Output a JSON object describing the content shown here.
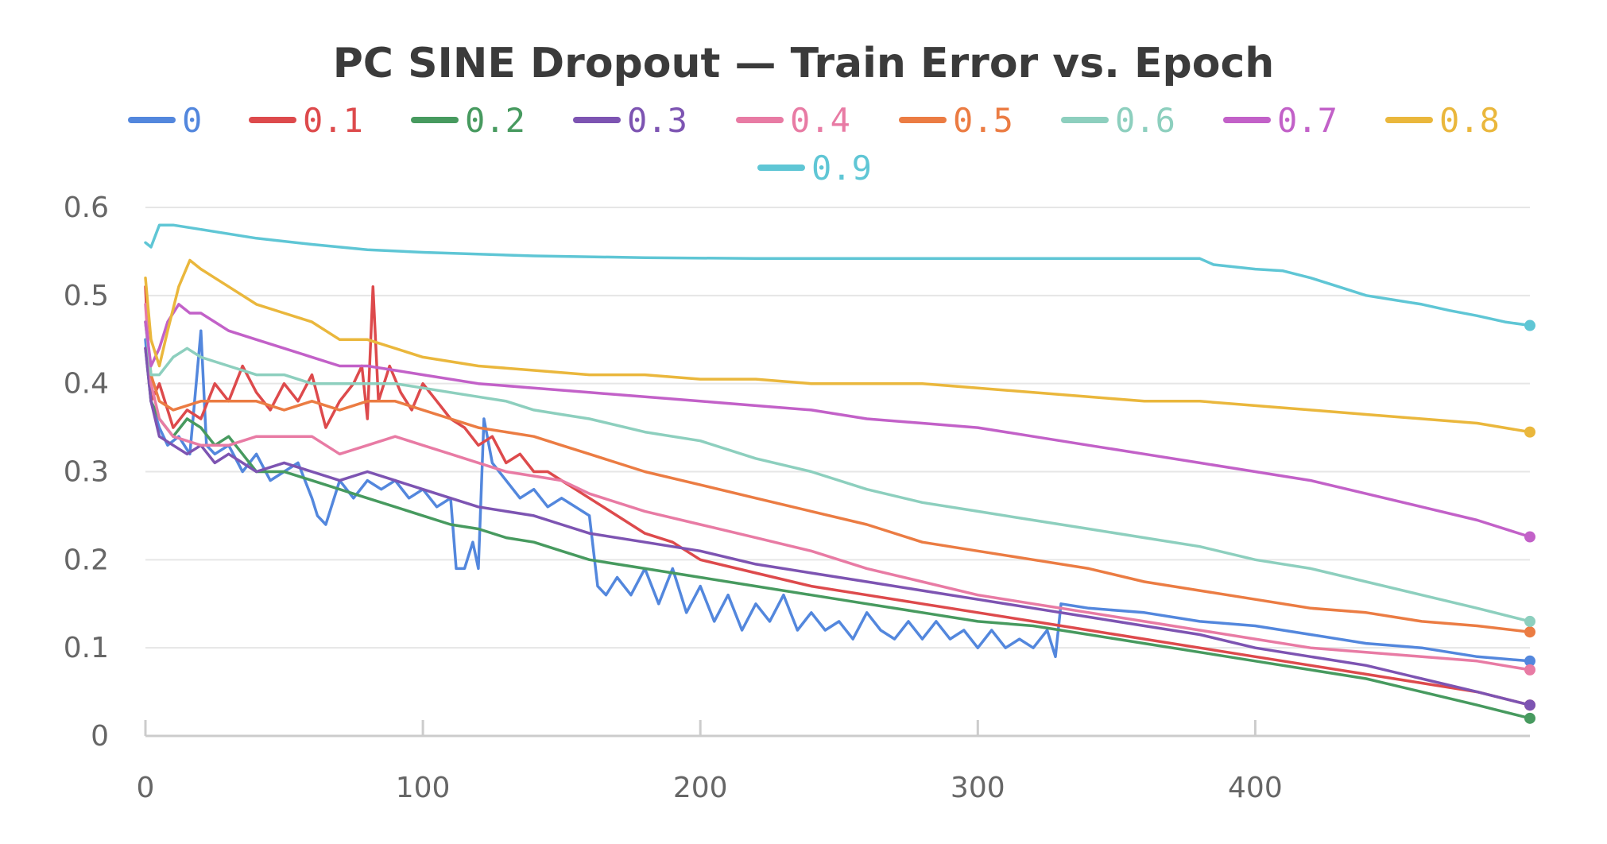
{
  "chart_data": {
    "type": "line",
    "title": "PC SINE Dropout — Train Error vs. Epoch",
    "xlabel": "",
    "ylabel": "",
    "xlim": [
      0,
      499
    ],
    "ylim": [
      0,
      0.6
    ],
    "x_ticks": [
      0,
      100,
      200,
      300,
      400
    ],
    "y_ticks": [
      0,
      0.1,
      0.2,
      0.3,
      0.4,
      0.5,
      0.6
    ],
    "grid": true,
    "legend_position": "top-center",
    "series": [
      {
        "name": "0",
        "color": "#5387dd",
        "x": [
          0,
          2,
          5,
          8,
          12,
          16,
          20,
          22,
          25,
          30,
          35,
          40,
          45,
          50,
          55,
          60,
          62,
          65,
          68,
          70,
          75,
          80,
          85,
          90,
          95,
          100,
          105,
          110,
          112,
          115,
          118,
          120,
          122,
          125,
          130,
          135,
          140,
          145,
          150,
          155,
          160,
          163,
          166,
          170,
          175,
          180,
          185,
          190,
          195,
          200,
          205,
          210,
          215,
          220,
          225,
          230,
          235,
          240,
          245,
          250,
          255,
          260,
          265,
          270,
          275,
          280,
          285,
          290,
          295,
          300,
          305,
          310,
          315,
          320,
          325,
          328,
          330,
          340,
          360,
          380,
          400,
          420,
          440,
          460,
          480,
          499
        ],
        "y": [
          0.45,
          0.38,
          0.35,
          0.33,
          0.34,
          0.32,
          0.46,
          0.33,
          0.32,
          0.33,
          0.3,
          0.32,
          0.29,
          0.3,
          0.31,
          0.27,
          0.25,
          0.24,
          0.27,
          0.29,
          0.27,
          0.29,
          0.28,
          0.29,
          0.27,
          0.28,
          0.26,
          0.27,
          0.19,
          0.19,
          0.22,
          0.19,
          0.36,
          0.31,
          0.29,
          0.27,
          0.28,
          0.26,
          0.27,
          0.26,
          0.25,
          0.17,
          0.16,
          0.18,
          0.16,
          0.19,
          0.15,
          0.19,
          0.14,
          0.17,
          0.13,
          0.16,
          0.12,
          0.15,
          0.13,
          0.16,
          0.12,
          0.14,
          0.12,
          0.13,
          0.11,
          0.14,
          0.12,
          0.11,
          0.13,
          0.11,
          0.13,
          0.11,
          0.12,
          0.1,
          0.12,
          0.1,
          0.11,
          0.1,
          0.12,
          0.09,
          0.15,
          0.145,
          0.14,
          0.13,
          0.125,
          0.115,
          0.105,
          0.1,
          0.09,
          0.085
        ]
      },
      {
        "name": "0.1",
        "color": "#dd4a4c",
        "x": [
          0,
          2,
          5,
          10,
          15,
          20,
          25,
          30,
          35,
          40,
          45,
          50,
          55,
          60,
          65,
          70,
          75,
          78,
          80,
          82,
          84,
          88,
          92,
          96,
          100,
          105,
          110,
          115,
          120,
          125,
          130,
          135,
          140,
          145,
          150,
          155,
          160,
          170,
          180,
          190,
          200,
          220,
          240,
          260,
          280,
          300,
          320,
          340,
          360,
          380,
          400,
          420,
          440,
          460,
          480,
          499
        ],
        "y": [
          0.51,
          0.38,
          0.4,
          0.35,
          0.37,
          0.36,
          0.4,
          0.38,
          0.42,
          0.39,
          0.37,
          0.4,
          0.38,
          0.41,
          0.35,
          0.38,
          0.4,
          0.42,
          0.36,
          0.51,
          0.38,
          0.42,
          0.39,
          0.37,
          0.4,
          0.38,
          0.36,
          0.35,
          0.33,
          0.34,
          0.31,
          0.32,
          0.3,
          0.3,
          0.29,
          0.28,
          0.27,
          0.25,
          0.23,
          0.22,
          0.2,
          0.185,
          0.17,
          0.16,
          0.15,
          0.14,
          0.13,
          0.12,
          0.11,
          0.1,
          0.09,
          0.08,
          0.07,
          0.06,
          0.05,
          0.035
        ]
      },
      {
        "name": "0.2",
        "color": "#479a5f",
        "x": [
          0,
          2,
          5,
          10,
          15,
          20,
          25,
          30,
          35,
          40,
          50,
          60,
          70,
          80,
          90,
          100,
          110,
          120,
          130,
          140,
          150,
          160,
          180,
          200,
          220,
          240,
          260,
          280,
          300,
          320,
          340,
          360,
          380,
          400,
          420,
          440,
          460,
          480,
          499
        ],
        "y": [
          0.44,
          0.38,
          0.36,
          0.34,
          0.36,
          0.35,
          0.33,
          0.34,
          0.32,
          0.3,
          0.3,
          0.29,
          0.28,
          0.27,
          0.26,
          0.25,
          0.24,
          0.235,
          0.225,
          0.22,
          0.21,
          0.2,
          0.19,
          0.18,
          0.17,
          0.16,
          0.15,
          0.14,
          0.13,
          0.125,
          0.115,
          0.105,
          0.095,
          0.085,
          0.075,
          0.065,
          0.05,
          0.035,
          0.02
        ]
      },
      {
        "name": "0.3",
        "color": "#7d54b2",
        "x": [
          0,
          2,
          5,
          10,
          15,
          20,
          25,
          30,
          35,
          40,
          50,
          60,
          70,
          80,
          90,
          100,
          110,
          120,
          130,
          140,
          150,
          160,
          180,
          200,
          220,
          240,
          260,
          280,
          300,
          320,
          340,
          360,
          380,
          400,
          420,
          440,
          460,
          480,
          499
        ],
        "y": [
          0.44,
          0.38,
          0.34,
          0.33,
          0.32,
          0.33,
          0.31,
          0.32,
          0.31,
          0.3,
          0.31,
          0.3,
          0.29,
          0.3,
          0.29,
          0.28,
          0.27,
          0.26,
          0.255,
          0.25,
          0.24,
          0.23,
          0.22,
          0.21,
          0.195,
          0.185,
          0.175,
          0.165,
          0.155,
          0.145,
          0.135,
          0.125,
          0.115,
          0.1,
          0.09,
          0.08,
          0.065,
          0.05,
          0.035
        ]
      },
      {
        "name": "0.4",
        "color": "#e87ba4",
        "x": [
          0,
          2,
          5,
          10,
          20,
          30,
          40,
          50,
          60,
          70,
          80,
          90,
          100,
          110,
          120,
          130,
          140,
          150,
          160,
          180,
          200,
          220,
          240,
          260,
          280,
          300,
          320,
          340,
          360,
          380,
          400,
          420,
          440,
          460,
          480,
          499
        ],
        "y": [
          0.49,
          0.4,
          0.36,
          0.34,
          0.33,
          0.33,
          0.34,
          0.34,
          0.34,
          0.32,
          0.33,
          0.34,
          0.33,
          0.32,
          0.31,
          0.3,
          0.295,
          0.29,
          0.275,
          0.255,
          0.24,
          0.225,
          0.21,
          0.19,
          0.175,
          0.16,
          0.15,
          0.14,
          0.13,
          0.12,
          0.11,
          0.1,
          0.095,
          0.09,
          0.085,
          0.075
        ]
      },
      {
        "name": "0.5",
        "color": "#eb7c43",
        "x": [
          0,
          2,
          5,
          10,
          20,
          30,
          40,
          50,
          60,
          70,
          80,
          90,
          100,
          110,
          120,
          130,
          140,
          150,
          160,
          180,
          200,
          220,
          240,
          260,
          280,
          300,
          320,
          340,
          360,
          380,
          400,
          420,
          440,
          460,
          480,
          499
        ],
        "y": [
          0.47,
          0.41,
          0.38,
          0.37,
          0.38,
          0.38,
          0.38,
          0.37,
          0.38,
          0.37,
          0.38,
          0.38,
          0.37,
          0.36,
          0.35,
          0.345,
          0.34,
          0.33,
          0.32,
          0.3,
          0.285,
          0.27,
          0.255,
          0.24,
          0.22,
          0.21,
          0.2,
          0.19,
          0.175,
          0.165,
          0.155,
          0.145,
          0.14,
          0.13,
          0.125,
          0.118
        ]
      },
      {
        "name": "0.6",
        "color": "#8dcfbe",
        "x": [
          0,
          2,
          5,
          10,
          15,
          20,
          30,
          40,
          50,
          60,
          70,
          80,
          90,
          100,
          110,
          120,
          130,
          140,
          150,
          160,
          180,
          200,
          220,
          240,
          260,
          280,
          300,
          320,
          340,
          360,
          380,
          400,
          420,
          440,
          460,
          480,
          499
        ],
        "y": [
          0.47,
          0.41,
          0.41,
          0.43,
          0.44,
          0.43,
          0.42,
          0.41,
          0.41,
          0.4,
          0.4,
          0.4,
          0.4,
          0.395,
          0.39,
          0.385,
          0.38,
          0.37,
          0.365,
          0.36,
          0.345,
          0.335,
          0.315,
          0.3,
          0.28,
          0.265,
          0.255,
          0.245,
          0.235,
          0.225,
          0.215,
          0.2,
          0.19,
          0.175,
          0.16,
          0.145,
          0.13
        ]
      },
      {
        "name": "0.7",
        "color": "#c261c8",
        "x": [
          0,
          2,
          5,
          8,
          12,
          16,
          20,
          25,
          30,
          40,
          50,
          60,
          70,
          80,
          90,
          100,
          120,
          140,
          160,
          180,
          200,
          220,
          240,
          260,
          280,
          300,
          320,
          340,
          360,
          380,
          400,
          420,
          440,
          460,
          480,
          499
        ],
        "y": [
          0.47,
          0.42,
          0.44,
          0.47,
          0.49,
          0.48,
          0.48,
          0.47,
          0.46,
          0.45,
          0.44,
          0.43,
          0.42,
          0.42,
          0.415,
          0.41,
          0.4,
          0.395,
          0.39,
          0.385,
          0.38,
          0.375,
          0.37,
          0.36,
          0.355,
          0.35,
          0.34,
          0.33,
          0.32,
          0.31,
          0.3,
          0.29,
          0.275,
          0.26,
          0.245,
          0.226
        ]
      },
      {
        "name": "0.8",
        "color": "#eab73c",
        "x": [
          0,
          2,
          5,
          8,
          12,
          16,
          20,
          25,
          30,
          40,
          50,
          60,
          70,
          80,
          90,
          100,
          120,
          140,
          160,
          180,
          200,
          220,
          240,
          260,
          280,
          300,
          320,
          340,
          360,
          380,
          400,
          420,
          440,
          460,
          480,
          499
        ],
        "y": [
          0.52,
          0.45,
          0.42,
          0.46,
          0.51,
          0.54,
          0.53,
          0.52,
          0.51,
          0.49,
          0.48,
          0.47,
          0.45,
          0.45,
          0.44,
          0.43,
          0.42,
          0.415,
          0.41,
          0.41,
          0.405,
          0.405,
          0.4,
          0.4,
          0.4,
          0.395,
          0.39,
          0.385,
          0.38,
          0.38,
          0.375,
          0.37,
          0.365,
          0.36,
          0.355,
          0.345
        ]
      },
      {
        "name": "0.9",
        "color": "#5fc6d5",
        "x": [
          0,
          2,
          5,
          10,
          20,
          40,
          60,
          80,
          100,
          140,
          180,
          220,
          260,
          300,
          340,
          370,
          380,
          385,
          400,
          410,
          420,
          430,
          440,
          450,
          460,
          470,
          480,
          490,
          499
        ],
        "y": [
          0.56,
          0.555,
          0.58,
          0.58,
          0.575,
          0.565,
          0.558,
          0.552,
          0.549,
          0.545,
          0.543,
          0.542,
          0.542,
          0.542,
          0.542,
          0.542,
          0.542,
          0.535,
          0.53,
          0.528,
          0.52,
          0.51,
          0.5,
          0.495,
          0.49,
          0.483,
          0.477,
          0.47,
          0.466
        ]
      }
    ]
  }
}
